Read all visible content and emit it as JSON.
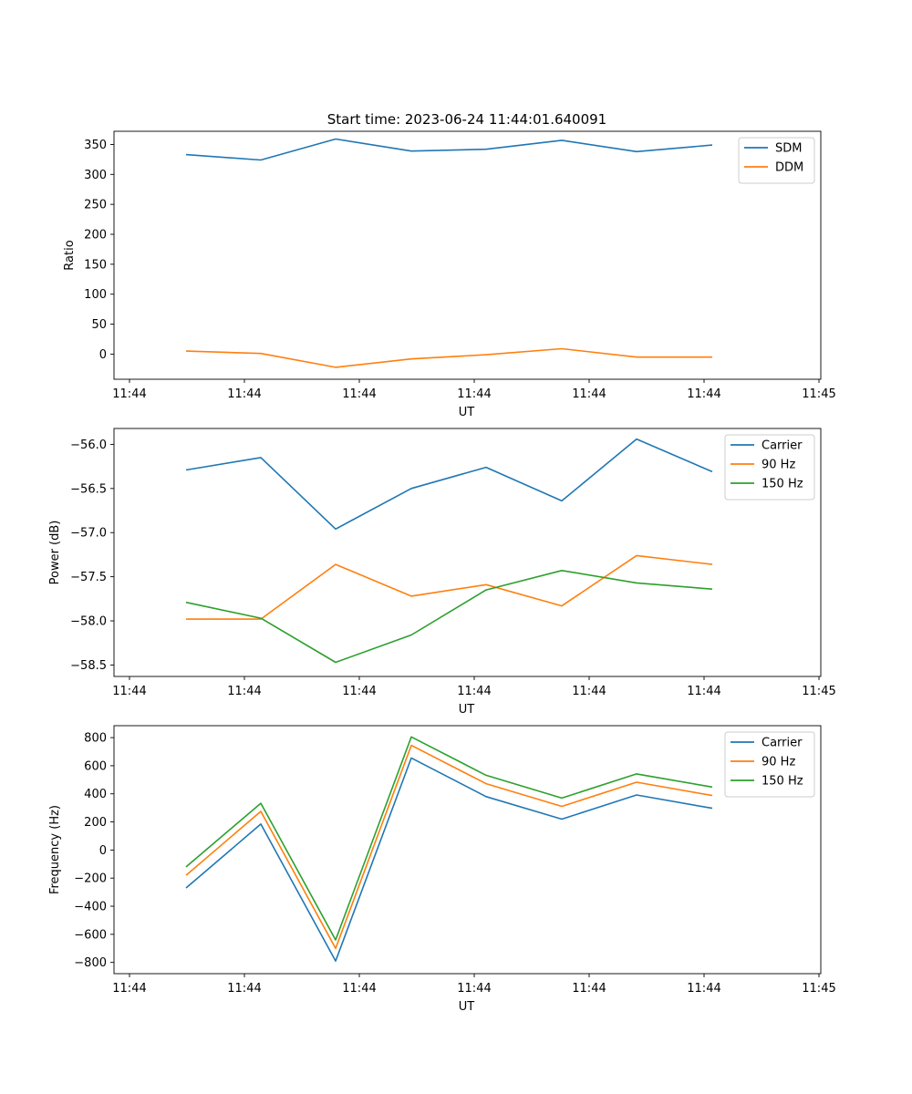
{
  "figure_title": "Start time: 2023-06-24 11:44:01.640091",
  "chart_data": [
    {
      "type": "line",
      "title": "Start time: 2023-06-24 11:44:01.640091",
      "xlabel": "UT",
      "ylabel": "Ratio",
      "x_tick_labels": [
        "11:44",
        "11:44",
        "11:44",
        "11:44",
        "11:44",
        "11:44",
        "11:44",
        "11:45"
      ],
      "y_ticks": [
        0,
        50,
        100,
        150,
        200,
        250,
        300,
        350
      ],
      "ylim": [
        -42,
        372
      ],
      "grid": false,
      "legend_position": "top-right",
      "series": [
        {
          "name": "SDM",
          "color": "#1f77b4",
          "values": [
            333,
            324,
            359,
            339,
            342,
            357,
            338,
            349
          ]
        },
        {
          "name": "DDM",
          "color": "#ff7f0e",
          "values": [
            5,
            1,
            -22,
            -8,
            -1,
            9,
            -5,
            -5
          ]
        }
      ]
    },
    {
      "type": "line",
      "xlabel": "UT",
      "ylabel": "Power (dB)",
      "x_tick_labels": [
        "11:44",
        "11:44",
        "11:44",
        "11:44",
        "11:44",
        "11:44",
        "11:44",
        "11:45"
      ],
      "y_ticks": [
        -58.5,
        -58.0,
        -57.5,
        -57.0,
        -56.5,
        -56.0
      ],
      "y_tick_labels": [
        "−58.5",
        "−58.0",
        "−57.5",
        "−57.0",
        "−56.5",
        "−56.0"
      ],
      "ylim": [
        -58.63,
        -55.82
      ],
      "grid": false,
      "legend_position": "top-right",
      "series": [
        {
          "name": "Carrier",
          "color": "#1f77b4",
          "values": [
            -56.29,
            -56.15,
            -56.96,
            -56.5,
            -56.26,
            -56.64,
            -55.94,
            -56.31
          ]
        },
        {
          "name": "90 Hz",
          "color": "#ff7f0e",
          "values": [
            -57.98,
            -57.98,
            -57.36,
            -57.72,
            -57.59,
            -57.83,
            -57.26,
            -57.36
          ]
        },
        {
          "name": "150 Hz",
          "color": "#2ca02c",
          "values": [
            -57.79,
            -57.97,
            -58.47,
            -58.16,
            -57.65,
            -57.43,
            -57.57,
            -57.64
          ]
        }
      ]
    },
    {
      "type": "line",
      "xlabel": "UT",
      "ylabel": "Frequency (Hz)",
      "x_tick_labels": [
        "11:44",
        "11:44",
        "11:44",
        "11:44",
        "11:44",
        "11:44",
        "11:44",
        "11:45"
      ],
      "y_ticks": [
        -800,
        -600,
        -400,
        -200,
        0,
        200,
        400,
        600,
        800
      ],
      "y_tick_labels": [
        "−800",
        "−600",
        "−400",
        "−200",
        "0",
        "200",
        "400",
        "600",
        "800"
      ],
      "ylim": [
        -880,
        885
      ],
      "grid": false,
      "legend_position": "top-right",
      "series": [
        {
          "name": "Carrier",
          "color": "#1f77b4",
          "values": [
            -270,
            185,
            -790,
            655,
            380,
            220,
            392,
            297
          ]
        },
        {
          "name": "90 Hz",
          "color": "#ff7f0e",
          "values": [
            -180,
            275,
            -700,
            745,
            472,
            311,
            483,
            388
          ]
        },
        {
          "name": "150 Hz",
          "color": "#2ca02c",
          "values": [
            -120,
            333,
            -640,
            805,
            532,
            370,
            542,
            448
          ]
        }
      ]
    }
  ]
}
